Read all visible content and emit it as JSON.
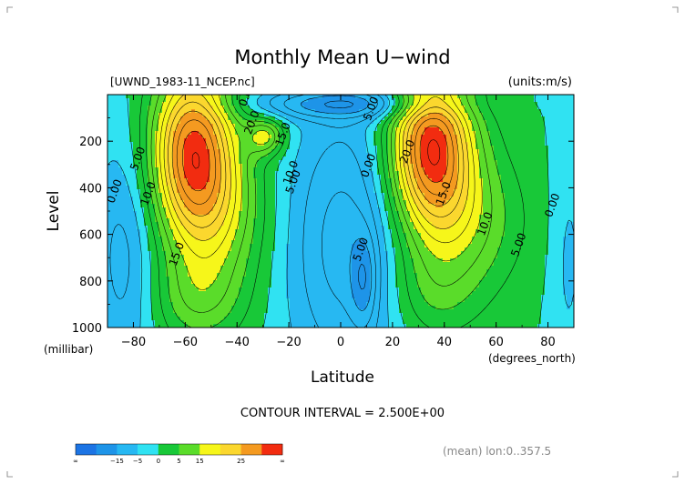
{
  "chart_data": {
    "type": "contour",
    "title": "Monthly Mean U−wind",
    "file_label": "[UWND_1983-11_NCEP.nc]",
    "units_label": "(units:m/s)",
    "xlabel": "Latitude",
    "ylabel": "Level",
    "x_unit": "(degrees_north)",
    "y_unit": "(millibar)",
    "xlim": [
      -90,
      90
    ],
    "ylim": [
      1000,
      0
    ],
    "x_ticks": [
      -80,
      -60,
      -40,
      -20,
      0,
      20,
      40,
      60,
      80
    ],
    "y_ticks": [
      200,
      400,
      600,
      800,
      1000
    ],
    "contour_interval_text": "CONTOUR INTERVAL = 2.500E+00",
    "contour_interval": 2.5,
    "subtitle": "(mean) lon:0..357.5",
    "contour_labels": [
      {
        "text": "0.00",
        "x": -35,
        "y": 5
      },
      {
        "text": "5.00",
        "x": 13,
        "y": 65
      },
      {
        "text": "20.0",
        "x": -33,
        "y": 125
      },
      {
        "text": "15.0",
        "x": -21,
        "y": 175
      },
      {
        "text": "5.00",
        "x": -77,
        "y": 280
      },
      {
        "text": "0.00",
        "x": -86,
        "y": 420
      },
      {
        "text": "10.0",
        "x": -73,
        "y": 430
      },
      {
        "text": "10.0",
        "x": -18,
        "y": 340
      },
      {
        "text": "5.00",
        "x": -17,
        "y": 380
      },
      {
        "text": "15.0",
        "x": -62,
        "y": 690
      },
      {
        "text": "0.00",
        "x": 12,
        "y": 310
      },
      {
        "text": "20.0",
        "x": 27,
        "y": 250
      },
      {
        "text": "15.0",
        "x": 41,
        "y": 430
      },
      {
        "text": "10.0",
        "x": 57,
        "y": 560
      },
      {
        "text": "5.00",
        "x": 70,
        "y": 650
      },
      {
        "text": "0.00",
        "x": 83,
        "y": 480
      },
      {
        "text": "5.00",
        "x": 9,
        "y": 670
      }
    ],
    "jets": [
      {
        "center_lat": -58,
        "center_level": 210,
        "max": 27.5
      },
      {
        "center_lat": -29,
        "center_level": 180,
        "max": 22.5
      },
      {
        "center_lat": 35,
        "center_level": 200,
        "max": 27.5
      }
    ],
    "colorbar": {
      "colors": [
        "#1c74e4",
        "#1e94e8",
        "#27b8f2",
        "#30e2f2",
        "#18c838",
        "#5adc2a",
        "#f6f61a",
        "#fbd72e",
        "#f49a20",
        "#f22c10"
      ],
      "tick_labels": [
        "∞",
        "−15",
        "−5",
        "0",
        "5",
        "15",
        "25",
        "∞"
      ]
    },
    "legend": "bottom"
  }
}
